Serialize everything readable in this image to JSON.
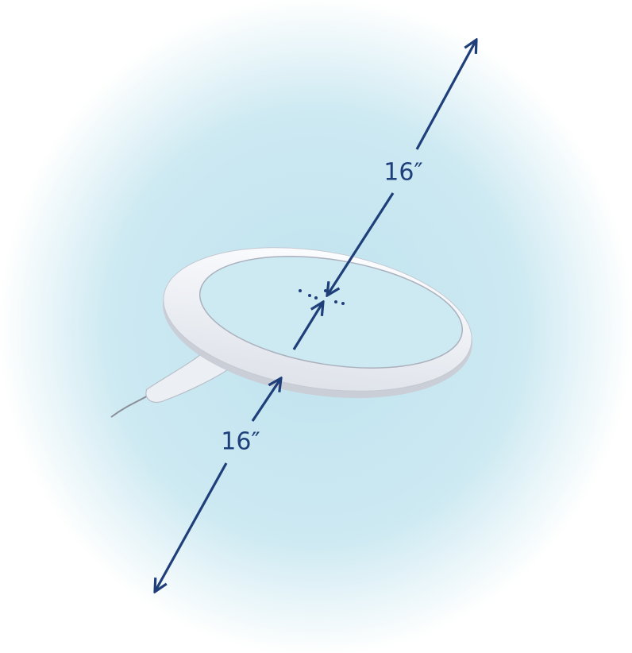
{
  "dimensions": [
    {
      "label": "16″"
    },
    {
      "label": "16″"
    }
  ]
}
